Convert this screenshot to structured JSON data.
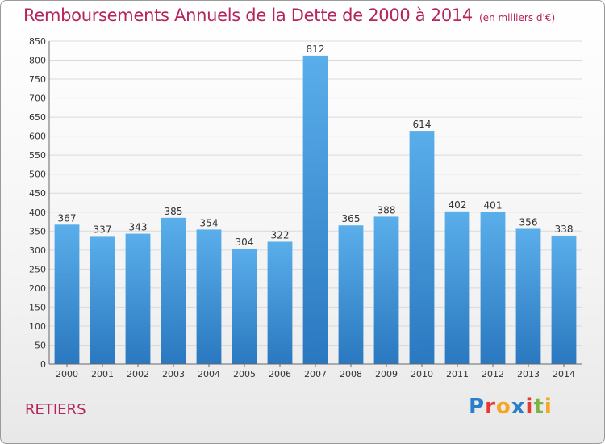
{
  "header": {
    "title": "Remboursements Annuels de la Dette de 2000 à 2014",
    "subtitle": "(en milliers d'€)"
  },
  "footer": {
    "town": "RETIERS",
    "brand_letters": [
      "P",
      "r",
      "o",
      "x",
      "i",
      "t",
      "i"
    ],
    "brand_colors": [
      "#2a7fc9",
      "#e8382f",
      "#f5a623",
      "#2a7fc9",
      "#e8382f",
      "#7cb342",
      "#f5a623"
    ]
  },
  "chart_data": {
    "type": "bar",
    "categories": [
      "2000",
      "2001",
      "2002",
      "2003",
      "2004",
      "2005",
      "2006",
      "2007",
      "2008",
      "2009",
      "2010",
      "2011",
      "2012",
      "2013",
      "2014"
    ],
    "values": [
      367,
      337,
      343,
      385,
      354,
      304,
      322,
      812,
      365,
      388,
      614,
      402,
      401,
      356,
      338
    ],
    "title": "Remboursements Annuels de la Dette de 2000 à 2014",
    "xlabel": "",
    "ylabel": "",
    "ylim": [
      0,
      850
    ],
    "ytick_step": 50,
    "grid": true,
    "bar_color": "#3b8fd6"
  }
}
